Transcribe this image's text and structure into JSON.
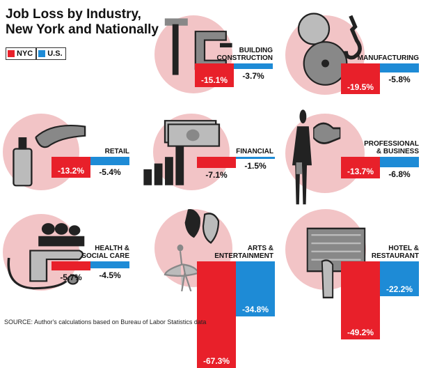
{
  "header": {
    "title_line1": "Job Loss by Industry,",
    "title_line2": "New York and Nationally"
  },
  "legend": [
    {
      "label": "NYC",
      "color": "#e8202a"
    },
    {
      "label": "U.S.",
      "color": "#1e8bd6"
    }
  ],
  "source": "SOURCE: Author's calculations based on Bureau of Labor Statistics data",
  "colors": {
    "nyc": "#e8202a",
    "us": "#1e8bd6",
    "circle": "#f2c4c6"
  },
  "chart_data": {
    "type": "bar",
    "series_names": [
      "NYC",
      "U.S."
    ],
    "categories": [
      {
        "name_lines": [
          "BUILDING",
          "CONSTRUCTION"
        ],
        "nyc": -15.1,
        "us": -3.7,
        "icon": "hammer-and-clamp-icon"
      },
      {
        "name_lines": [
          "MANUFACTURING"
        ],
        "nyc": -19.5,
        "us": -5.8,
        "icon": "saw-blade-and-hook-icon"
      },
      {
        "name_lines": [
          "RETAIL"
        ],
        "nyc": -13.2,
        "us": -5.4,
        "icon": "perfume-bottle-and-hand-icon"
      },
      {
        "name_lines": [
          "FINANCIAL"
        ],
        "nyc": -7.1,
        "us": -1.5,
        "icon": "dollar-bills-and-bar-chart-icon"
      },
      {
        "name_lines": [
          "PROFESSIONAL",
          "& BUSINESS"
        ],
        "nyc": -13.7,
        "us": -6.8,
        "icon": "businessman-and-handshake-icon"
      },
      {
        "name_lines": [
          "HEALTH &",
          "SOCIAL CARE"
        ],
        "nyc": -5.7,
        "us": -4.5,
        "icon": "stethoscope-and-hand-icon"
      },
      {
        "name_lines": [
          "ARTS &",
          "ENTERTAINMENT"
        ],
        "nyc": -67.3,
        "us": -34.8,
        "icon": "theater-masks-and-ballerina-icon"
      },
      {
        "name_lines": [
          "HOTEL &",
          "RESTAURANT"
        ],
        "nyc": -49.2,
        "us": -22.2,
        "icon": "hotel-and-cup-icon"
      }
    ],
    "value_suffix": "%"
  }
}
